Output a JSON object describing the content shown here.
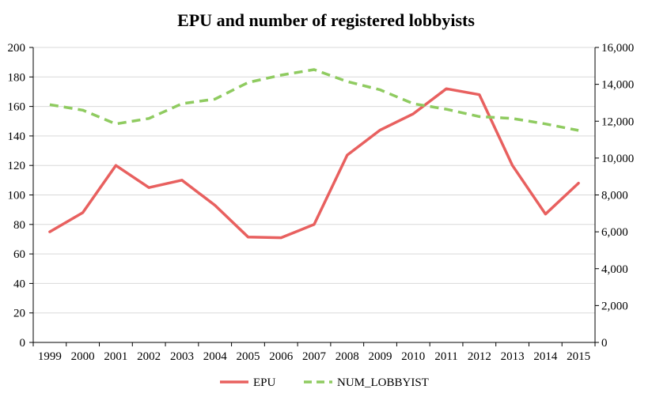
{
  "chart_data": {
    "type": "line",
    "title": "EPU and number of registered lobbyists",
    "x": [
      "1999",
      "2000",
      "2001",
      "2002",
      "2003",
      "2004",
      "2005",
      "2006",
      "2007",
      "2008",
      "2009",
      "2010",
      "2011",
      "2012",
      "2013",
      "2014",
      "2015"
    ],
    "series": [
      {
        "name": "EPU",
        "axis": "left",
        "color": "#e8605f",
        "style": "solid",
        "values": [
          75,
          88,
          120,
          105,
          110,
          93,
          71.5,
          71,
          80,
          127,
          144,
          155,
          172,
          168,
          120,
          87,
          108
        ]
      },
      {
        "name": "NUM_LOBBYIST",
        "axis": "right",
        "color": "#8fcb60",
        "style": "dashed",
        "values": [
          12900,
          12600,
          11850,
          12150,
          12950,
          13200,
          14100,
          14500,
          14800,
          14150,
          13700,
          12950,
          12650,
          12250,
          12150,
          11850,
          11500
        ]
      }
    ],
    "ylim_left": [
      0,
      200
    ],
    "yticks_left": [
      0,
      20,
      40,
      60,
      80,
      100,
      120,
      140,
      160,
      180,
      200
    ],
    "ytick_labels_left": [
      "0",
      "20",
      "40",
      "60",
      "80",
      "100",
      "120",
      "140",
      "160",
      "180",
      "200"
    ],
    "ylim_right": [
      0,
      16000
    ],
    "yticks_right": [
      0,
      2000,
      4000,
      6000,
      8000,
      10000,
      12000,
      14000,
      16000
    ],
    "ytick_labels_right": [
      "0",
      "2,000",
      "4,000",
      "6,000",
      "8,000",
      "10,000",
      "12,000",
      "14,000",
      "16,000"
    ],
    "grid": true,
    "legend_position": "bottom"
  }
}
